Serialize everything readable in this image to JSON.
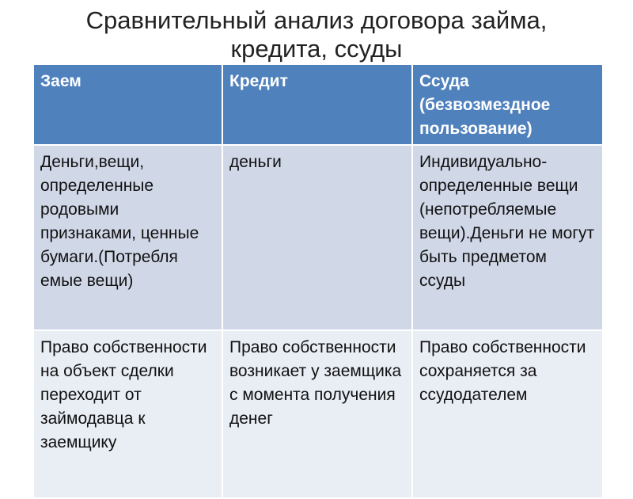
{
  "title_line1": "Сравнительный анализ договора займа,",
  "title_line2": "кредита, ссуды",
  "table": {
    "headers": [
      "Заем",
      "Кредит",
      "Ссуда (безвозмездное пользование)"
    ],
    "rows": [
      [
        "Деньги,вещи, определенные родовыми признаками, ценные бумаги.(Потребля емые вещи)",
        "деньги",
        "Индивидуально-определенные вещи (непотребляемые вещи).Деньги не могут быть предметом ссуды"
      ],
      [
        "Право собственности на объект сделки переходит от займодавца к заемщику",
        "Право собственности возникает у заемщика с момента получения денег",
        "Право собственности сохраняется за ссудодателем"
      ]
    ]
  },
  "colors": {
    "header": "#4f81bd",
    "row_odd": "#d0d8e8",
    "row_even": "#e9edf4"
  }
}
